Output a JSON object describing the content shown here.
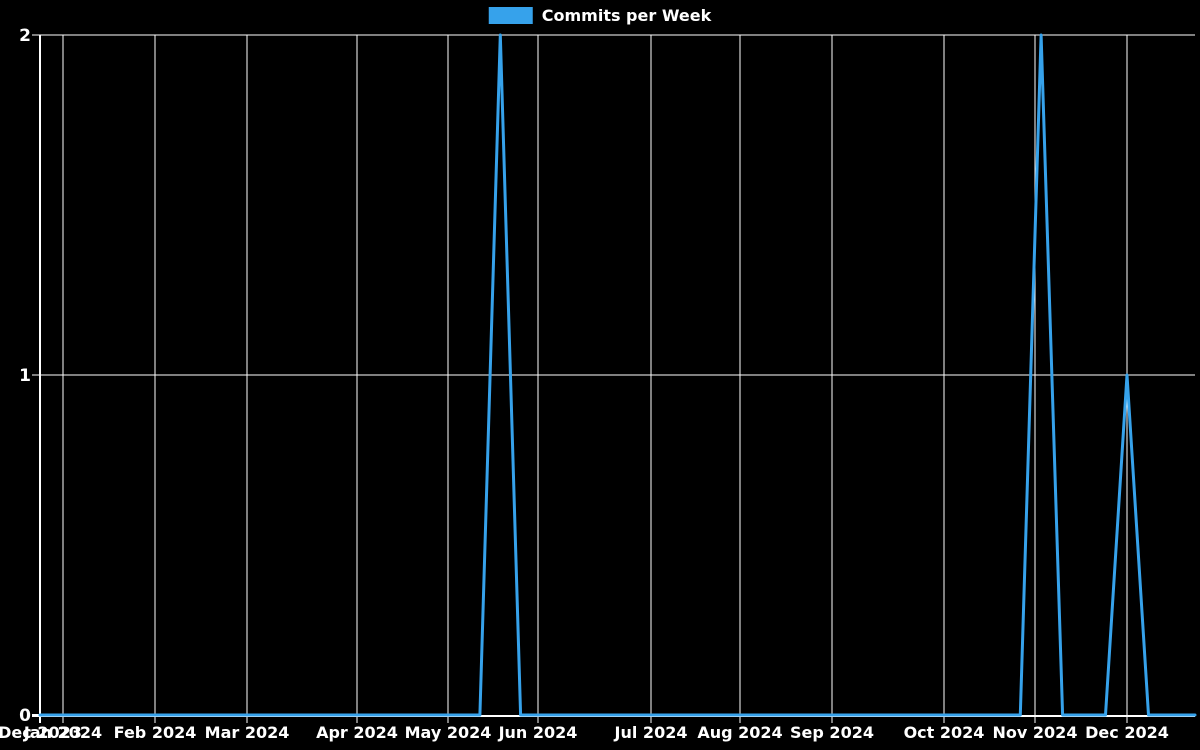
{
  "page": {
    "background_color": "#000000",
    "text_color": "#ffffff"
  },
  "legend": {
    "label": "Commits per Week",
    "swatch_color": "#36a2eb",
    "position": "top-center"
  },
  "chart_data": {
    "type": "line",
    "title": "",
    "series_name": "Commits per Week",
    "line_color": "#36a2eb",
    "grid": true,
    "grid_color": "#ffffff",
    "background_color": "#000000",
    "legend_position": "top-center",
    "x_axis": {
      "type": "time",
      "tick_labels": [
        "Dec 2023",
        "Jan 2024",
        "Feb 2024",
        "Mar 2024",
        "Apr 2024",
        "May 2024",
        "Jun 2024",
        "Jul 2024",
        "Aug 2024",
        "Sep 2024",
        "Oct 2024",
        "Nov 2024",
        "Dec 2024"
      ],
      "tick_dates": [
        "2023-12-24",
        "2024-01-01",
        "2024-02-01",
        "2024-03-01",
        "2024-04-01",
        "2024-05-01",
        "2024-06-01",
        "2024-07-01",
        "2024-08-01",
        "2024-09-01",
        "2024-10-01",
        "2024-11-01",
        "2024-12-01"
      ],
      "range": [
        "2023-12-24",
        "2024-12-24"
      ]
    },
    "y_axis": {
      "tick_labels": [
        "0",
        "1",
        "2"
      ],
      "ticks": [
        0,
        1,
        2
      ],
      "range": [
        0,
        2
      ],
      "label": ""
    },
    "peaks": [
      {
        "week": "2024-05-19",
        "commits": 2
      },
      {
        "week": "2024-11-03",
        "commits": 2
      },
      {
        "week": "2024-12-01",
        "commits": 1
      }
    ],
    "points_columns": [
      "week_start",
      "commits"
    ],
    "points": [
      [
        "2023-12-24",
        0
      ],
      [
        "2023-12-31",
        0
      ],
      [
        "2024-01-07",
        0
      ],
      [
        "2024-01-14",
        0
      ],
      [
        "2024-01-21",
        0
      ],
      [
        "2024-01-28",
        0
      ],
      [
        "2024-02-04",
        0
      ],
      [
        "2024-02-11",
        0
      ],
      [
        "2024-02-18",
        0
      ],
      [
        "2024-02-25",
        0
      ],
      [
        "2024-03-03",
        0
      ],
      [
        "2024-03-10",
        0
      ],
      [
        "2024-03-17",
        0
      ],
      [
        "2024-03-24",
        0
      ],
      [
        "2024-03-31",
        0
      ],
      [
        "2024-04-07",
        0
      ],
      [
        "2024-04-14",
        0
      ],
      [
        "2024-04-21",
        0
      ],
      [
        "2024-04-28",
        0
      ],
      [
        "2024-05-05",
        0
      ],
      [
        "2024-05-12",
        0
      ],
      [
        "2024-05-19",
        2
      ],
      [
        "2024-05-26",
        0
      ],
      [
        "2024-06-02",
        0
      ],
      [
        "2024-06-09",
        0
      ],
      [
        "2024-06-16",
        0
      ],
      [
        "2024-06-23",
        0
      ],
      [
        "2024-06-30",
        0
      ],
      [
        "2024-07-07",
        0
      ],
      [
        "2024-07-14",
        0
      ],
      [
        "2024-07-21",
        0
      ],
      [
        "2024-07-28",
        0
      ],
      [
        "2024-08-04",
        0
      ],
      [
        "2024-08-11",
        0
      ],
      [
        "2024-08-18",
        0
      ],
      [
        "2024-08-25",
        0
      ],
      [
        "2024-09-01",
        0
      ],
      [
        "2024-09-08",
        0
      ],
      [
        "2024-09-15",
        0
      ],
      [
        "2024-09-22",
        0
      ],
      [
        "2024-09-29",
        0
      ],
      [
        "2024-10-06",
        0
      ],
      [
        "2024-10-13",
        0
      ],
      [
        "2024-10-20",
        0
      ],
      [
        "2024-10-27",
        0
      ],
      [
        "2024-11-03",
        2
      ],
      [
        "2024-11-10",
        0
      ],
      [
        "2024-11-17",
        0
      ],
      [
        "2024-11-24",
        0
      ],
      [
        "2024-12-01",
        1
      ],
      [
        "2024-12-08",
        0
      ],
      [
        "2024-12-15",
        0
      ],
      [
        "2024-12-22",
        0
      ]
    ]
  }
}
